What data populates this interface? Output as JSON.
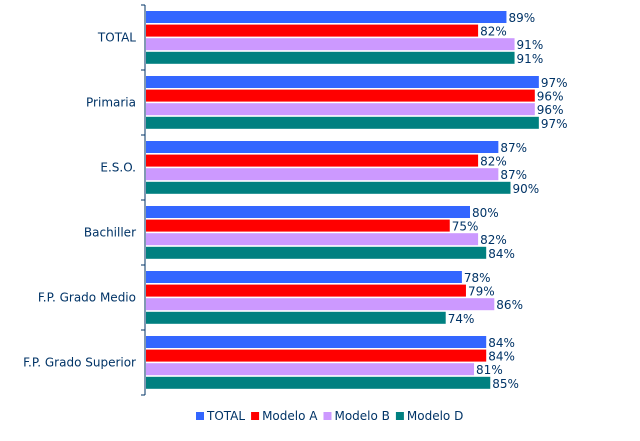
{
  "chart_data": {
    "type": "bar",
    "orientation": "horizontal",
    "categories": [
      "TOTAL",
      "Primaria",
      "E.S.O.",
      "Bachiller",
      "F.P. Grado Medio",
      "F.P. Grado Superior"
    ],
    "series": [
      {
        "name": "TOTAL",
        "color": "#3366FF",
        "values": [
          89,
          97,
          87,
          80,
          78,
          84
        ]
      },
      {
        "name": "Modelo A",
        "color": "#FF0000",
        "values": [
          82,
          96,
          82,
          75,
          79,
          84
        ]
      },
      {
        "name": "Modelo B",
        "color": "#CC99FF",
        "values": [
          91,
          96,
          87,
          82,
          86,
          81
        ]
      },
      {
        "name": "Modelo D",
        "color": "#008080",
        "values": [
          91,
          97,
          90,
          84,
          74,
          85
        ]
      }
    ],
    "value_suffix": "%",
    "xlim": [
      0,
      100
    ],
    "grid": false,
    "legend_position": "bottom"
  }
}
